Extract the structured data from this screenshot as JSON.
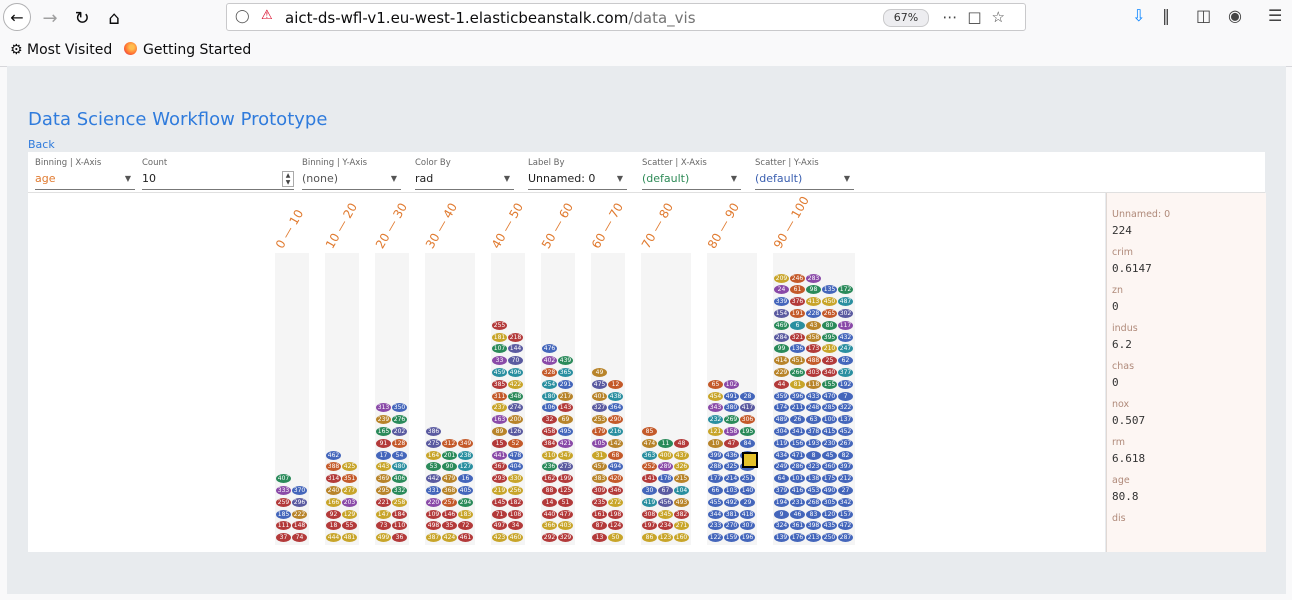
{
  "browser": {
    "url_host": "aict-ds-wfl-v1.eu-west-1.elasticbeanstalk.com",
    "url_path": "/data_vis",
    "zoom": "67%",
    "bookmarks": [
      "Most Visited",
      "Getting Started"
    ]
  },
  "app": {
    "title": "Data Science Workflow Prototype",
    "back_label": "Back"
  },
  "controls": {
    "binning_x": {
      "label": "Binning | X-Axis",
      "value": "age",
      "color": "#e07a2f"
    },
    "count": {
      "label": "Count",
      "value": "10"
    },
    "binning_y": {
      "label": "Binning | Y-Axis",
      "value": "(none)"
    },
    "color_by": {
      "label": "Color By",
      "value": "rad"
    },
    "label_by": {
      "label": "Label By",
      "value": "Unnamed: 0"
    },
    "scatter_x": {
      "label": "Scatter | X-Axis",
      "value": "(default)",
      "color": "#2e8b57"
    },
    "scatter_y": {
      "label": "Scatter | Y-Axis",
      "value": "(default)",
      "color": "#3a5fb0"
    }
  },
  "chart_data": {
    "type": "scatter",
    "xlabel": "",
    "ylabel": "",
    "categories": [
      "0 — 10",
      "10 — 20",
      "20 — 30",
      "30 — 40",
      "40 — 50",
      "50 — 60",
      "60 — 70",
      "70 — 80",
      "80 — 90",
      "90 — 100"
    ],
    "counts": [
      11,
      15,
      24,
      28,
      37,
      33,
      29,
      28,
      41,
      113
    ],
    "columns_per_bin": [
      2,
      2,
      2,
      3,
      2,
      2,
      2,
      3,
      3,
      5
    ],
    "palette": [
      "#b33a3a",
      "#c8a52a",
      "#2a8a5a",
      "#4466bb",
      "#b8842a",
      "#8a4aa8",
      "#2a8fa0",
      "#5a5aa0",
      "#c45a2a"
    ],
    "highlighted": "224"
  },
  "detail": {
    "fields": [
      {
        "key": "Unnamed: 0",
        "value": "224"
      },
      {
        "key": "crim",
        "value": "0.6147"
      },
      {
        "key": "zn",
        "value": "0"
      },
      {
        "key": "indus",
        "value": "6.2"
      },
      {
        "key": "chas",
        "value": "0"
      },
      {
        "key": "nox",
        "value": "0.507"
      },
      {
        "key": "rm",
        "value": "6.618"
      },
      {
        "key": "age",
        "value": "80.8"
      },
      {
        "key": "dis",
        "value": ""
      }
    ]
  }
}
